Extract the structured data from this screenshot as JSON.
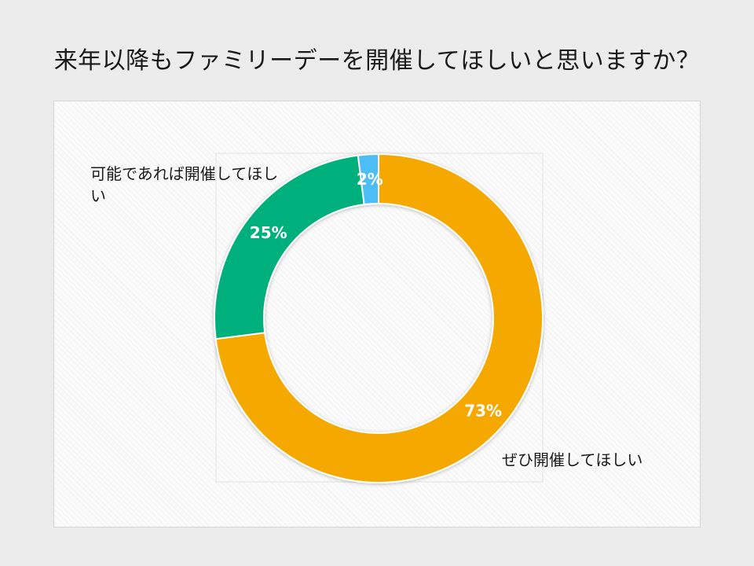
{
  "title": "来年以降もファミリーデーを開催してほしいと思いますか？",
  "chart_data": {
    "type": "pie",
    "variant": "donut",
    "categories": [
      "ぜひ開催してほしい",
      "可能であれば開催してほしい",
      ""
    ],
    "values": [
      73,
      25,
      2
    ],
    "value_labels": [
      "73%",
      "25%",
      "2%"
    ],
    "colors": [
      "#f5a800",
      "#06b07b",
      "#4dbdf5"
    ],
    "legend": "none"
  }
}
